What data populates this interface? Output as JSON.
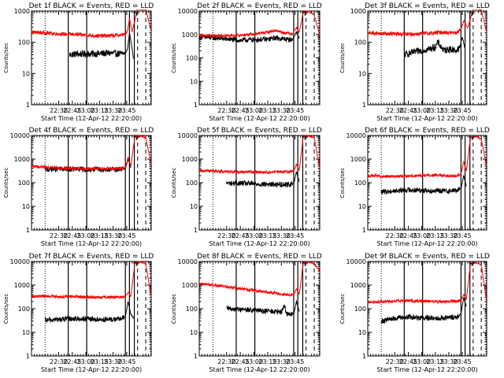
{
  "figure": {
    "colors": {
      "events": "#000000",
      "lld": "#ff0000",
      "axes": "#000000",
      "background": "#ffffff"
    },
    "shared": {
      "ylabel": "Counts/sec",
      "xlabel": "Start Time (12-Apr-12 22:20:00)",
      "x_tick_labels": [
        "22:30",
        "22:45",
        "23:00",
        "23:15",
        "23:30",
        "23:45"
      ],
      "y_tick_labels": [
        "1",
        "10",
        "100",
        "1000",
        "10000"
      ]
    }
  },
  "chart_data": [
    {
      "type": "line",
      "title": "Det 1f BLACK = Events, RED = LLD",
      "xlabel": "Start Time (12-Apr-12 22:20:00)",
      "ylabel": "Counts/sec",
      "xlim": [
        20,
        64
      ],
      "ylim": [
        1,
        1000
      ],
      "yscale": "log",
      "events_start": 34,
      "red_break": 45,
      "series": [
        {
          "name": "Events",
          "x": [
            34,
            36,
            40,
            45,
            48,
            50,
            53,
            54.5,
            55.3,
            56,
            56.8,
            57.5
          ],
          "values": [
            40,
            42,
            42,
            43,
            45,
            44,
            42,
            45,
            60,
            200,
            80,
            30
          ]
        },
        {
          "name": "LLD",
          "x": [
            20,
            25,
            30,
            35,
            40,
            45,
            50,
            53,
            54.5,
            55.3,
            56,
            57,
            59,
            62,
            64
          ],
          "values": [
            210,
            200,
            185,
            180,
            170,
            160,
            165,
            170,
            190,
            230,
            600,
            220,
            1200,
            1150,
            220
          ]
        }
      ],
      "solid_lines_x": [
        33.5,
        40.3,
        54.5,
        56,
        57.8
      ],
      "dotted_lines_x": [
        25
      ],
      "dashed_lines_x": [
        59,
        62
      ],
      "right_dotted_x": 64
    },
    {
      "type": "line",
      "title": "Det 2f BLACK = Events, RED = LLD",
      "xlabel": "Start Time (12-Apr-12 22:20:00)",
      "ylabel": "Counts/sec",
      "xlim": [
        20,
        64
      ],
      "ylim": [
        1,
        10000
      ],
      "yscale": "log",
      "events_start": 20,
      "red_break": 45,
      "series": [
        {
          "name": "Events",
          "x": [
            20,
            25,
            30,
            35,
            40,
            45,
            48,
            50,
            52,
            54,
            55.5,
            56.5
          ],
          "values": [
            780,
            720,
            640,
            560,
            600,
            620,
            720,
            660,
            620,
            580,
            1300,
            700
          ]
        },
        {
          "name": "LLD",
          "x": [
            20,
            25,
            30,
            35,
            40,
            45,
            48,
            50,
            52,
            54,
            55.5,
            56.5,
            58,
            60,
            62,
            64
          ],
          "values": [
            900,
            880,
            900,
            930,
            1050,
            1250,
            1500,
            1250,
            1150,
            1050,
            2000,
            1200,
            9000,
            9500,
            7000,
            900
          ]
        }
      ],
      "solid_lines_x": [
        33.5,
        40.3,
        54.5,
        56,
        57.8
      ],
      "dotted_lines_x": [
        25
      ],
      "dashed_lines_x": [
        59,
        62
      ],
      "right_dotted_x": 64
    },
    {
      "type": "line",
      "title": "Det 3f BLACK = Events, RED = LLD",
      "xlabel": "Start Time (12-Apr-12 22:20:00)",
      "ylabel": "Counts/sec",
      "xlim": [
        20,
        64
      ],
      "ylim": [
        1,
        1000
      ],
      "yscale": "log",
      "events_start": 33.5,
      "red_break": 45,
      "series": [
        {
          "name": "Events",
          "x": [
            33.5,
            36,
            40,
            43,
            45,
            46,
            48,
            50,
            53,
            54,
            55,
            56
          ],
          "values": [
            40,
            45,
            55,
            62,
            70,
            100,
            55,
            60,
            55,
            65,
            150,
            60
          ]
        },
        {
          "name": "LLD",
          "x": [
            20,
            25,
            30,
            35,
            40,
            45,
            48,
            50,
            53,
            54.5,
            55.5,
            57,
            59,
            62,
            64
          ],
          "values": [
            200,
            190,
            185,
            180,
            190,
            200,
            210,
            200,
            210,
            260,
            500,
            280,
            1200,
            1100,
            200
          ]
        }
      ],
      "solid_lines_x": [
        33.5,
        40.3,
        54.5,
        56,
        57.8
      ],
      "dotted_lines_x": [
        25
      ],
      "dashed_lines_x": [
        59,
        62
      ],
      "right_dotted_x": 64
    },
    {
      "type": "line",
      "title": "Det 4f BLACK = Events, RED = LLD",
      "xlabel": "Start Time (12-Apr-12 22:20:00)",
      "ylabel": "Counts/sec",
      "xlim": [
        20,
        64
      ],
      "ylim": [
        1,
        10000
      ],
      "yscale": "log",
      "events_start": 25,
      "red_break": 45,
      "series": [
        {
          "name": "Events",
          "x": [
            25,
            30,
            35,
            40,
            45,
            50,
            53,
            54.5,
            55.5,
            56.5
          ],
          "values": [
            360,
            380,
            370,
            365,
            360,
            365,
            370,
            380,
            1000,
            450
          ]
        },
        {
          "name": "LLD",
          "x": [
            20,
            25,
            30,
            35,
            40,
            45,
            50,
            53,
            54.5,
            55.5,
            56.5,
            58,
            60,
            62,
            64
          ],
          "values": [
            500,
            450,
            420,
            400,
            390,
            390,
            395,
            400,
            420,
            1200,
            500,
            9000,
            9500,
            8000,
            600
          ]
        }
      ],
      "solid_lines_x": [
        33.5,
        40.3,
        54.5,
        56,
        57.8
      ],
      "dotted_lines_x": [
        25
      ],
      "dashed_lines_x": [
        59,
        62
      ],
      "right_dotted_x": 64
    },
    {
      "type": "line",
      "title": "Det 5f BLACK = Events, RED = LLD",
      "xlabel": "Start Time (12-Apr-12 22:20:00)",
      "ylabel": "Counts/sec",
      "xlim": [
        20,
        64
      ],
      "ylim": [
        1,
        10000
      ],
      "yscale": "log",
      "events_start": 30,
      "red_break": 45,
      "series": [
        {
          "name": "Events",
          "x": [
            30,
            35,
            40,
            45,
            50,
            53,
            54.5,
            55.5,
            56.5
          ],
          "values": [
            95,
            95,
            90,
            85,
            85,
            85,
            90,
            300,
            110
          ]
        },
        {
          "name": "LLD",
          "x": [
            20,
            25,
            30,
            35,
            40,
            45,
            50,
            53,
            54.5,
            55.5,
            56.5,
            58,
            60,
            62,
            64
          ],
          "values": [
            330,
            310,
            300,
            290,
            285,
            280,
            290,
            300,
            320,
            600,
            350,
            9000,
            9500,
            8000,
            400
          ]
        }
      ],
      "solid_lines_x": [
        33.5,
        40.3,
        54.5,
        56,
        57.8
      ],
      "dotted_lines_x": [
        25
      ],
      "dashed_lines_x": [
        59,
        62
      ],
      "right_dotted_x": 64
    },
    {
      "type": "line",
      "title": "Det 6f BLACK = Events, RED = LLD",
      "xlabel": "Start Time (12-Apr-12 22:20:00)",
      "ylabel": "Counts/sec",
      "xlim": [
        20,
        64
      ],
      "ylim": [
        1,
        10000
      ],
      "yscale": "log",
      "events_start": 25,
      "red_break": 45,
      "series": [
        {
          "name": "Events",
          "x": [
            25,
            30,
            35,
            40,
            45,
            50,
            53,
            54.5,
            55.5,
            56.5
          ],
          "values": [
            40,
            45,
            50,
            48,
            45,
            45,
            48,
            55,
            200,
            70
          ]
        },
        {
          "name": "LLD",
          "x": [
            20,
            25,
            30,
            35,
            40,
            45,
            50,
            53,
            54.5,
            55.5,
            56.5,
            58,
            60,
            62,
            64
          ],
          "values": [
            200,
            190,
            185,
            190,
            200,
            210,
            190,
            200,
            230,
            800,
            300,
            8500,
            9000,
            7000,
            500
          ]
        }
      ],
      "solid_lines_x": [
        33.5,
        40.3,
        54.5,
        56,
        57.8
      ],
      "dotted_lines_x": [
        25
      ],
      "dashed_lines_x": [
        59,
        62
      ],
      "right_dotted_x": 64
    },
    {
      "type": "line",
      "title": "Det 7f BLACK = Events, RED = LLD",
      "xlabel": "Start Time (12-Apr-12 22:20:00)",
      "ylabel": "Counts/sec",
      "xlim": [
        20,
        64
      ],
      "ylim": [
        1,
        10000
      ],
      "yscale": "log",
      "events_start": 25,
      "red_break": 45,
      "series": [
        {
          "name": "Events",
          "x": [
            25,
            30,
            35,
            40,
            45,
            50,
            53,
            54.5,
            55.5,
            56.5,
            57.5
          ],
          "values": [
            32,
            35,
            38,
            36,
            35,
            35,
            38,
            45,
            200,
            60,
            40
          ]
        },
        {
          "name": "LLD",
          "x": [
            20,
            25,
            30,
            35,
            40,
            45,
            50,
            53,
            54.5,
            55.5,
            56.5,
            58,
            60,
            62,
            64
          ],
          "values": [
            320,
            340,
            320,
            330,
            310,
            300,
            310,
            320,
            330,
            500,
            330,
            9000,
            9500,
            8000,
            300
          ]
        }
      ],
      "solid_lines_x": [
        33.5,
        40.3,
        54.5,
        56,
        57.8
      ],
      "dotted_lines_x": [
        25
      ],
      "dashed_lines_x": [
        59,
        62
      ],
      "right_dotted_x": 64
    },
    {
      "type": "line",
      "title": "Det 8f BLACK = Events, RED = LLD",
      "xlabel": "Start Time (12-Apr-12 22:20:00)",
      "ylabel": "Counts/sec",
      "xlim": [
        20,
        64
      ],
      "ylim": [
        1,
        10000
      ],
      "yscale": "log",
      "events_start": 30,
      "red_break": 45,
      "series": [
        {
          "name": "Events",
          "x": [
            30,
            35,
            40,
            45,
            50,
            51,
            52,
            53,
            54.5,
            55.5,
            56.5
          ],
          "values": [
            100,
            95,
            85,
            80,
            70,
            140,
            60,
            55,
            60,
            200,
            80
          ]
        },
        {
          "name": "LLD",
          "x": [
            20,
            25,
            30,
            35,
            40,
            45,
            50,
            53,
            54.5,
            55.5,
            56.5,
            58,
            60,
            62,
            64
          ],
          "values": [
            1200,
            1000,
            850,
            700,
            600,
            500,
            420,
            380,
            380,
            700,
            400,
            9000,
            9500,
            8000,
            4000
          ]
        }
      ],
      "solid_lines_x": [
        33.5,
        40.3,
        54.5,
        56,
        57.8
      ],
      "dotted_lines_x": [
        25
      ],
      "dashed_lines_x": [
        59,
        62
      ],
      "right_dotted_x": 64
    },
    {
      "type": "line",
      "title": "Det 9f BLACK = Events, RED = LLD",
      "xlabel": "Start Time (12-Apr-12 22:20:00)",
      "ylabel": "Counts/sec",
      "xlim": [
        20,
        64
      ],
      "ylim": [
        1,
        10000
      ],
      "yscale": "log",
      "events_start": 25,
      "red_break": 45,
      "series": [
        {
          "name": "Events",
          "x": [
            25,
            30,
            35,
            40,
            45,
            50,
            53,
            54.5,
            55.5,
            56.5
          ],
          "values": [
            30,
            40,
            45,
            42,
            40,
            42,
            45,
            60,
            300,
            120
          ]
        },
        {
          "name": "LLD",
          "x": [
            20,
            25,
            30,
            35,
            40,
            45,
            50,
            53,
            54.5,
            55.5,
            56.5,
            58,
            60,
            62,
            64
          ],
          "values": [
            180,
            200,
            210,
            220,
            210,
            200,
            200,
            210,
            230,
            400,
            260,
            8000,
            9000,
            7000,
            200
          ]
        }
      ],
      "solid_lines_x": [
        33.5,
        40.3,
        54.5,
        56,
        57.8
      ],
      "dotted_lines_x": [
        25
      ],
      "dashed_lines_x": [
        59,
        62
      ],
      "right_dotted_x": 64
    }
  ]
}
